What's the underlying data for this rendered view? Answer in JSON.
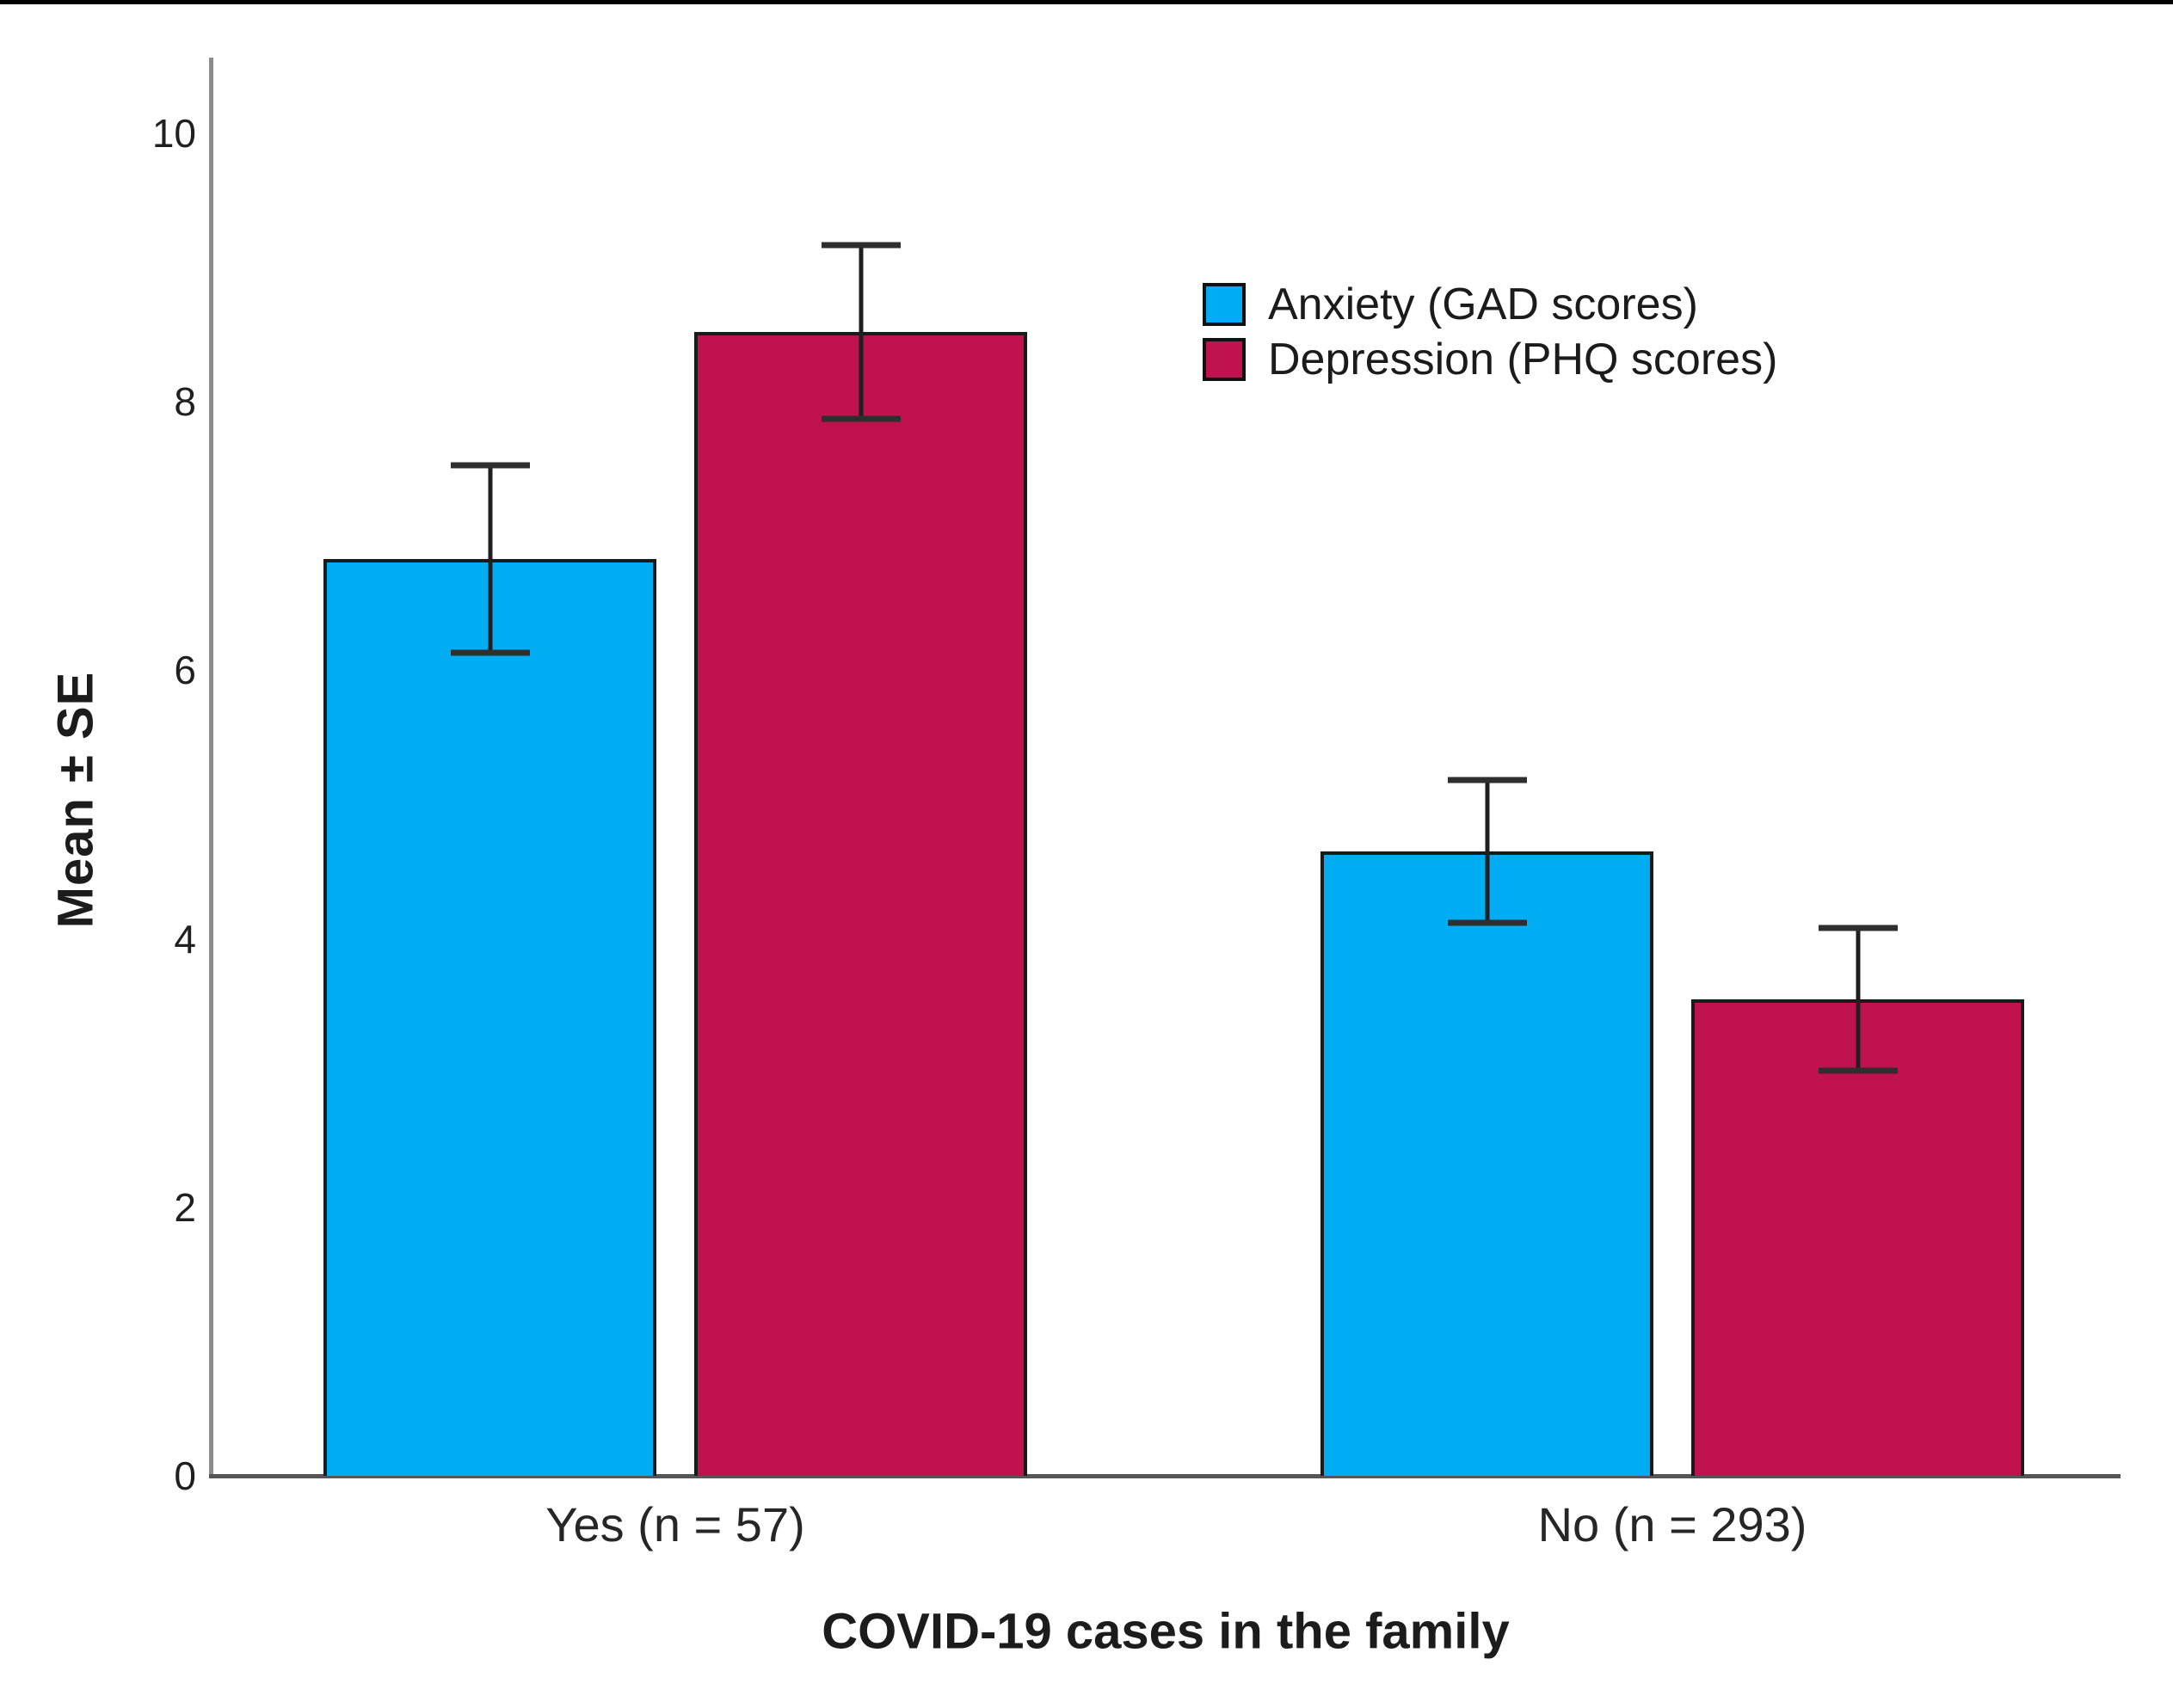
{
  "chart_data": {
    "type": "bar",
    "title": "",
    "xlabel": "COVID-19 cases in the family",
    "ylabel": "Mean ± SE",
    "categories": [
      "Yes (n = 57)",
      "No (n = 293)"
    ],
    "series": [
      {
        "name": "Anxiety (GAD scores)",
        "color": "#00ACF2",
        "values": [
          6.83,
          4.65
        ],
        "se": [
          0.7,
          0.53
        ]
      },
      {
        "name": "Depression (PHQ scores)",
        "color": "#C11250",
        "values": [
          8.52,
          3.55
        ],
        "se": [
          0.65,
          0.53
        ]
      }
    ],
    "y_ticks": [
      "0",
      "2",
      "4",
      "6",
      "8",
      "10"
    ],
    "ylim": [
      0,
      10.5
    ],
    "grid": false,
    "legend_position": "upper-right-inside",
    "error_bars": "±1 SE",
    "bar_outline_color": "#1a1a1a",
    "axis_line_color": "#8c8c8c"
  }
}
